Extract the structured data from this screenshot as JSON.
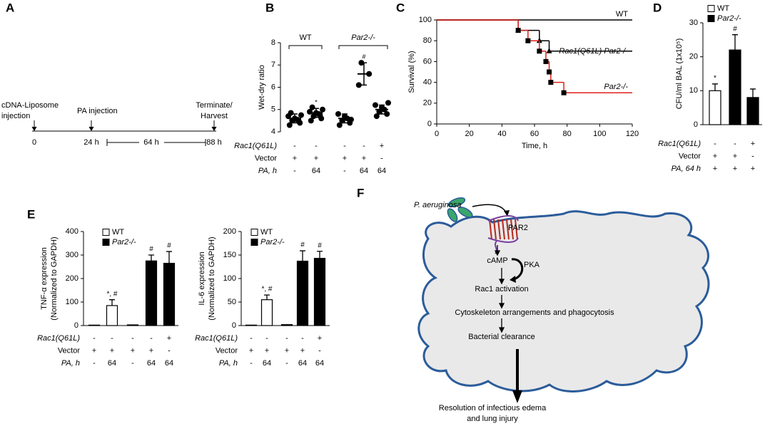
{
  "panels": {
    "A": {
      "panel": "A",
      "left_text": [
        "cDNA-Liposome",
        "injection"
      ],
      "middle_text": "PA injection",
      "right_text": [
        "Terminate/",
        "Harvest"
      ],
      "times": [
        "0",
        "24 h",
        "64 h",
        "88 h"
      ]
    },
    "F": {
      "panel": "F",
      "pathogen": "P. aeruginosa",
      "receptor": "PAR2",
      "steps": [
        "cAMP",
        "Rac1 activation",
        "Cytoskeleton arrangements and phagocytosis",
        "Bacterial clearance"
      ],
      "kinase": "PKA",
      "outcome": [
        "Resolution of infectious edema",
        "and lung injury"
      ]
    }
  },
  "chart_data": [
    {
      "type": "dot",
      "panel": "B",
      "ylabel": [
        "Wet-dry ratio"
      ],
      "ylim": [
        4,
        8
      ],
      "yticks": [
        4,
        5,
        6,
        7,
        8
      ],
      "values": [
        4.6,
        4.85,
        4.6,
        6.6,
        5.0
      ],
      "errors": [
        0.2,
        0.2,
        0.2,
        0.5,
        0.2
      ],
      "points": [
        [
          4.3,
          4.4,
          4.5,
          4.55,
          4.6,
          4.7,
          4.75,
          4.85,
          4.5
        ],
        [
          4.5,
          4.6,
          4.7,
          4.8,
          4.85,
          4.9,
          5.0,
          5.1,
          4.75
        ],
        [
          4.3,
          4.4,
          4.5,
          4.6,
          4.7,
          4.8,
          4.55
        ],
        [
          6.1,
          6.6,
          7.1
        ],
        [
          4.7,
          4.8,
          4.9,
          5.0,
          5.1,
          5.2,
          5.3
        ]
      ],
      "groups": [
        {
          "name": "WT",
          "size": 2
        },
        {
          "name": "Par2-/-",
          "size": 3
        }
      ],
      "annotations": [
        {
          "text": "*",
          "index": 1
        },
        {
          "text": "#",
          "index": 3
        }
      ],
      "conditions": [
        {
          "name": "Rac1(Q61L)",
          "values": [
            "-",
            "-",
            "-",
            "-",
            "+"
          ]
        },
        {
          "name": "Vector",
          "values": [
            "+",
            "+",
            "+",
            "+",
            "-"
          ]
        },
        {
          "name": "PA, h",
          "values": [
            "-",
            "64",
            "-",
            "64",
            "64"
          ]
        }
      ]
    },
    {
      "type": "survival",
      "panel": "C",
      "xlabel": "Time, h",
      "ylabel": "Survival (%)",
      "xlim": [
        0,
        120
      ],
      "xticks": [
        0,
        20,
        40,
        60,
        80,
        100,
        120
      ],
      "ylim": [
        0,
        100
      ],
      "yticks": [
        0,
        20,
        40,
        60,
        80,
        100
      ],
      "series": [
        {
          "name": "WT",
          "color": "#000000",
          "x": [
            0,
            120
          ],
          "values": [
            100,
            100
          ]
        },
        {
          "name": "Rac1(Q61L) Par2-/-",
          "color": "#000000",
          "marker": "triangle",
          "x": [
            0,
            50,
            63,
            69,
            120
          ],
          "values": [
            100,
            90,
            80,
            70,
            70
          ]
        },
        {
          "name": "Par2-/-",
          "color": "#e0201b",
          "marker": "square",
          "x": [
            0,
            50,
            56,
            63,
            67,
            69,
            70,
            78,
            120
          ],
          "values": [
            100,
            90,
            80,
            70,
            60,
            50,
            40,
            30,
            30
          ]
        }
      ]
    },
    {
      "type": "bar",
      "panel": "D",
      "ylabel": [
        "CFU/ml BAL (1x10⁵)"
      ],
      "ylim": [
        0,
        30
      ],
      "yticks": [
        0,
        10,
        20,
        30
      ],
      "series": [
        {
          "name": "WT",
          "color": "#ffffff",
          "values": [
            10,
            null,
            null
          ],
          "errors": [
            2,
            null,
            null
          ]
        },
        {
          "name": "Par2-/-",
          "color": "#000000",
          "values": [
            null,
            22,
            8
          ],
          "errors": [
            null,
            4.5,
            2.5
          ]
        }
      ],
      "annotations": [
        {
          "text": "*",
          "index": 0
        },
        {
          "text": "#",
          "index": 1
        }
      ],
      "conditions": [
        {
          "name": "Rac1(Q61L)",
          "values": [
            "-",
            "-",
            "+"
          ]
        },
        {
          "name": "Vector",
          "values": [
            "+",
            "+",
            "-"
          ]
        },
        {
          "name": "PA, 64 h",
          "values": [
            "+",
            "+",
            "+"
          ]
        }
      ]
    },
    {
      "type": "bar",
      "panel": "E",
      "ylabel": [
        "TNF-α expression",
        "(Normalized to GAPDH)"
      ],
      "ylim": [
        0,
        400
      ],
      "yticks": [
        0,
        100,
        200,
        300,
        400
      ],
      "series": [
        {
          "name": "WT",
          "color": "#ffffff",
          "values": [
            2,
            85,
            null,
            null,
            null
          ],
          "errors": [
            null,
            25,
            null,
            null,
            null
          ]
        },
        {
          "name": "Par2-/-",
          "color": "#000000",
          "values": [
            null,
            null,
            3,
            275,
            265
          ],
          "errors": [
            null,
            null,
            null,
            25,
            50
          ]
        }
      ],
      "annotations": [
        {
          "text": "*, #",
          "index": 1
        },
        {
          "text": "#",
          "index": 3
        },
        {
          "text": "#",
          "index": 4
        }
      ],
      "conditions": [
        {
          "name": "Rac1(Q61L)",
          "values": [
            "-",
            "-",
            "-",
            "-",
            "+"
          ]
        },
        {
          "name": "Vector",
          "values": [
            "+",
            "+",
            "+",
            "+",
            "-"
          ]
        },
        {
          "name": "PA, h",
          "values": [
            "-",
            "64",
            "-",
            "64",
            "64"
          ]
        }
      ]
    },
    {
      "type": "bar",
      "ylabel": [
        "IL-6 expression",
        "(Normalized to GAPDH)"
      ],
      "ylim": [
        0,
        200
      ],
      "yticks": [
        0,
        50,
        100,
        150,
        200
      ],
      "series": [
        {
          "name": "WT",
          "color": "#ffffff",
          "values": [
            1,
            55,
            null,
            null,
            null
          ],
          "errors": [
            null,
            10,
            null,
            null,
            null
          ]
        },
        {
          "name": "Par2-/-",
          "color": "#000000",
          "values": [
            null,
            null,
            2,
            137,
            143
          ],
          "errors": [
            null,
            null,
            null,
            22,
            15
          ]
        }
      ],
      "annotations": [
        {
          "text": "*, #",
          "index": 1
        },
        {
          "text": "#",
          "index": 3
        },
        {
          "text": "#",
          "index": 4
        }
      ],
      "conditions": [
        {
          "name": "Rac1(Q61L)",
          "values": [
            "-",
            "-",
            "-",
            "-",
            "+"
          ]
        },
        {
          "name": "Vector",
          "values": [
            "+",
            "+",
            "+",
            "+",
            "-"
          ]
        },
        {
          "name": "PA, h",
          "values": [
            "-",
            "64",
            "-",
            "64",
            "64"
          ]
        }
      ]
    }
  ]
}
